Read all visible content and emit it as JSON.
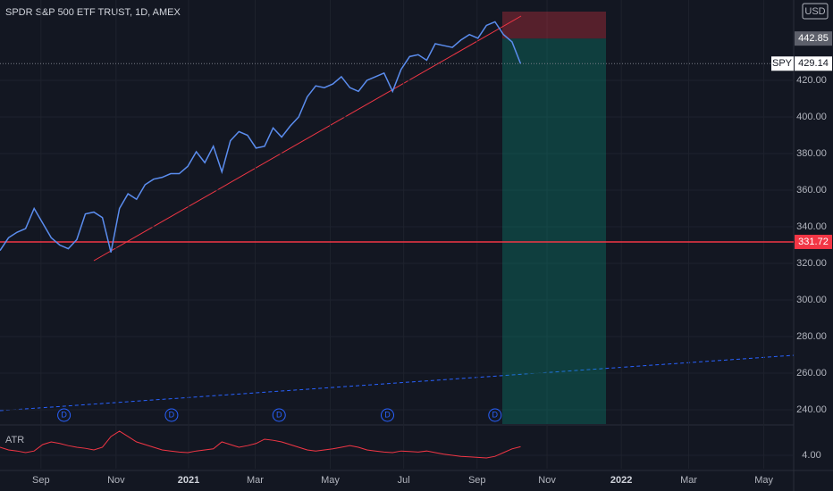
{
  "chart_data": {
    "type": "line",
    "title": "SPDR S&P 500 ETF TRUST, 1D, AMEX",
    "currency": "USD",
    "categories": [
      null,
      null,
      null,
      null,
      null,
      null,
      null,
      null,
      null,
      null,
      null,
      null,
      null,
      null,
      null,
      null,
      null,
      null,
      null,
      null,
      null,
      null,
      null,
      null,
      null,
      null,
      null,
      null,
      null,
      null,
      null,
      null,
      null,
      null,
      null,
      null,
      null,
      null,
      null,
      null,
      null,
      null,
      null,
      null,
      null,
      null,
      null,
      null,
      null,
      null,
      null,
      null,
      null,
      null,
      null,
      null,
      null,
      null,
      null,
      null,
      null,
      null
    ],
    "series": [
      {
        "name": "SPY",
        "color": "#5b8def",
        "values": [
          327,
          334,
          337,
          339,
          350,
          342,
          334,
          330,
          328,
          333,
          347,
          348,
          345,
          326,
          350,
          358,
          355,
          363,
          366,
          367,
          369,
          369,
          373,
          381,
          375,
          384,
          370,
          387,
          392,
          390,
          383,
          384,
          394,
          389,
          395,
          400,
          411,
          417,
          416,
          418,
          422,
          416,
          414,
          420,
          422,
          424,
          414,
          426,
          433,
          434,
          431,
          440,
          439,
          438,
          442,
          445,
          443,
          450,
          452,
          445,
          441,
          429.14
        ]
      }
    ],
    "xlim": [
      0,
      93
    ],
    "xticks": [
      {
        "value": 4.8,
        "label": "Sep"
      },
      {
        "value": 13.6,
        "label": "Nov"
      },
      {
        "value": 22.1,
        "label": "2021"
      },
      {
        "value": 29.9,
        "label": "Mar"
      },
      {
        "value": 38.7,
        "label": "May"
      },
      {
        "value": 47.3,
        "label": "Jul"
      },
      {
        "value": 55.9,
        "label": "Sep"
      },
      {
        "value": 64.1,
        "label": "Nov"
      },
      {
        "value": 72.8,
        "label": "2022"
      },
      {
        "value": 80.7,
        "label": "Mar"
      },
      {
        "value": 89.5,
        "label": "May"
      }
    ],
    "ylim": [
      232.2,
      463.9
    ],
    "yticks": [
      {
        "value": 240,
        "label": "240.00"
      },
      {
        "value": 260,
        "label": "260.00"
      },
      {
        "value": 280,
        "label": "280.00"
      },
      {
        "value": 300,
        "label": "300.00"
      },
      {
        "value": 320,
        "label": "320.00"
      },
      {
        "value": 340,
        "label": "340.00"
      },
      {
        "value": 360,
        "label": "360.00"
      },
      {
        "value": 380,
        "label": "380.00"
      },
      {
        "value": 400,
        "label": "400.00"
      },
      {
        "value": 420,
        "label": "420.00"
      }
    ],
    "last_price": 429.14,
    "target_price": 442.85,
    "support_price": 331.72,
    "dividends": {
      "label": "D",
      "x": [
        7.5,
        20.1,
        32.7,
        45.4,
        58
      ]
    },
    "atr": {
      "name": "ATR",
      "color": "#f23645",
      "ylim": [
        1.5,
        9.33
      ],
      "yticks": [
        {
          "value": 4,
          "label": "4.00"
        }
      ],
      "values": [
        5.5,
        5,
        4.8,
        4.5,
        4.8,
        6,
        6.5,
        6.2,
        5.8,
        5.5,
        5.3,
        5,
        5.5,
        7.5,
        8.5,
        7.5,
        6.5,
        6,
        5.5,
        5,
        4.8,
        4.6,
        4.5,
        4.8,
        5,
        5.2,
        6.5,
        6,
        5.5,
        5.8,
        6.2,
        7,
        6.8,
        6.5,
        6,
        5.5,
        5,
        4.8,
        5,
        5.2,
        5.5,
        5.8,
        5.5,
        5,
        4.8,
        4.6,
        4.5,
        4.8,
        4.7,
        4.6,
        4.8,
        4.5,
        4.2,
        4.0,
        3.8,
        3.7,
        3.6,
        3.5,
        3.8,
        4.5,
        5.2,
        5.6
      ]
    }
  }
}
